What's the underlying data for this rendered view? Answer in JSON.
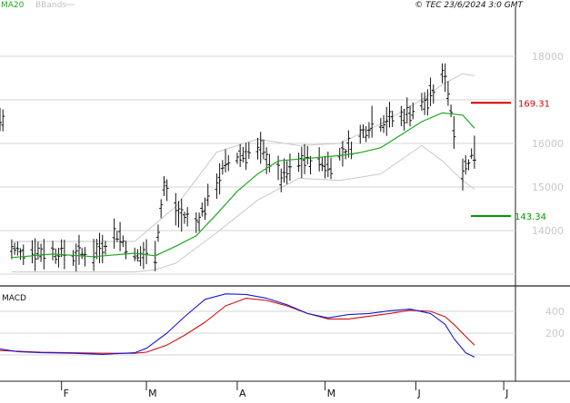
{
  "header": {
    "indicator_ma": "MA20",
    "indicator_bb": "BBands",
    "copyright": "© TEC 23/6/2024 3:0 GMT"
  },
  "price_panel": {
    "y_ticks": [
      "18000",
      "16000",
      "15000",
      "14000"
    ],
    "resistance_label": "169.31",
    "support_label": "143.34"
  },
  "macd_panel": {
    "label": "MACD",
    "y_ticks": [
      "400",
      "200"
    ]
  },
  "x_ticks": [
    "F",
    "M",
    "A",
    "M",
    "J",
    "J"
  ],
  "colors": {
    "ma_line": "#1fa81f",
    "bbands": "#c8c8c8",
    "resistance": "#d40000",
    "support": "#009900",
    "macd_line": "#1a1ad6",
    "signal_line": "#cc1010",
    "bars": "#111111",
    "grid": "#d6d6d6",
    "axis": "#222222"
  },
  "chart_data": [
    {
      "type": "ohlc",
      "title": "",
      "x_range": [
        "2024-01-11",
        "2024-07-05"
      ],
      "ylim": [
        13000,
        19000
      ],
      "x_tick_labels": [
        "F",
        "M",
        "A",
        "M",
        "J",
        "J"
      ],
      "y_tick_labels": [
        "18000",
        "16000",
        "15000",
        "14000"
      ],
      "grid": true,
      "levels": {
        "resistance": 16931,
        "support": 14334
      },
      "series": [
        {
          "name": "MA20",
          "kind": "line",
          "x": [
            "2024-01-15",
            "2024-01-29",
            "2024-02-12",
            "2024-02-26",
            "2024-03-04",
            "2024-03-11",
            "2024-03-18",
            "2024-03-25",
            "2024-04-01",
            "2024-04-08",
            "2024-04-15",
            "2024-04-22",
            "2024-04-29",
            "2024-05-06",
            "2024-05-13",
            "2024-05-20",
            "2024-05-27",
            "2024-06-03",
            "2024-06-10",
            "2024-06-17",
            "2024-06-21"
          ],
          "y": [
            13380,
            13460,
            13400,
            13480,
            13420,
            13640,
            13880,
            14380,
            14900,
            15300,
            15600,
            15640,
            15680,
            15720,
            15790,
            15900,
            16200,
            16500,
            16700,
            16650,
            16350
          ]
        },
        {
          "name": "BBands upper",
          "kind": "line",
          "x": [
            "2024-01-15",
            "2024-02-12",
            "2024-02-26",
            "2024-03-11",
            "2024-03-25",
            "2024-04-08",
            "2024-04-22",
            "2024-05-06",
            "2024-05-20",
            "2024-06-03",
            "2024-06-10",
            "2024-06-17",
            "2024-06-21"
          ],
          "y": [
            13750,
            13750,
            13750,
            14550,
            15800,
            16100,
            15950,
            16000,
            16450,
            17000,
            17350,
            17600,
            17550
          ]
        },
        {
          "name": "BBands lower",
          "kind": "line",
          "x": [
            "2024-01-15",
            "2024-02-12",
            "2024-02-26",
            "2024-03-04",
            "2024-03-11",
            "2024-03-25",
            "2024-04-08",
            "2024-04-22",
            "2024-05-06",
            "2024-05-20",
            "2024-06-03",
            "2024-06-10",
            "2024-06-17",
            "2024-06-21"
          ],
          "y": [
            13050,
            13050,
            13050,
            13100,
            13250,
            13950,
            14700,
            15200,
            15150,
            15300,
            15950,
            15600,
            15150,
            14950
          ]
        }
      ]
    },
    {
      "type": "line",
      "title": "MACD",
      "x_range": [
        "2024-01-11",
        "2024-07-05"
      ],
      "ylim": [
        -200,
        600
      ],
      "y_tick_labels": [
        "400",
        "200"
      ],
      "grid": true,
      "series": [
        {
          "name": "MACD",
          "x": [
            "2024-01-11",
            "2024-01-17",
            "2024-01-25",
            "2024-02-05",
            "2024-02-15",
            "2024-02-26",
            "2024-03-01",
            "2024-03-08",
            "2024-03-14",
            "2024-03-21",
            "2024-03-28",
            "2024-04-04",
            "2024-04-11",
            "2024-04-18",
            "2024-04-25",
            "2024-05-02",
            "2024-05-09",
            "2024-05-16",
            "2024-05-23",
            "2024-05-30",
            "2024-06-06",
            "2024-06-11",
            "2024-06-14",
            "2024-06-18",
            "2024-06-21"
          ],
          "y": [
            55,
            30,
            20,
            15,
            5,
            20,
            60,
            200,
            350,
            510,
            560,
            555,
            520,
            460,
            380,
            340,
            370,
            380,
            405,
            420,
            380,
            280,
            150,
            20,
            -20
          ]
        },
        {
          "name": "Signal",
          "x": [
            "2024-01-11",
            "2024-01-25",
            "2024-02-15",
            "2024-02-26",
            "2024-03-01",
            "2024-03-08",
            "2024-03-14",
            "2024-03-21",
            "2024-03-28",
            "2024-04-04",
            "2024-04-11",
            "2024-04-18",
            "2024-04-25",
            "2024-05-02",
            "2024-05-09",
            "2024-05-23",
            "2024-05-30",
            "2024-06-06",
            "2024-06-11",
            "2024-06-14",
            "2024-06-18",
            "2024-06-21"
          ],
          "y": [
            40,
            25,
            15,
            15,
            25,
            90,
            180,
            300,
            450,
            520,
            500,
            450,
            380,
            330,
            330,
            380,
            410,
            400,
            350,
            280,
            170,
            90
          ]
        }
      ]
    }
  ]
}
